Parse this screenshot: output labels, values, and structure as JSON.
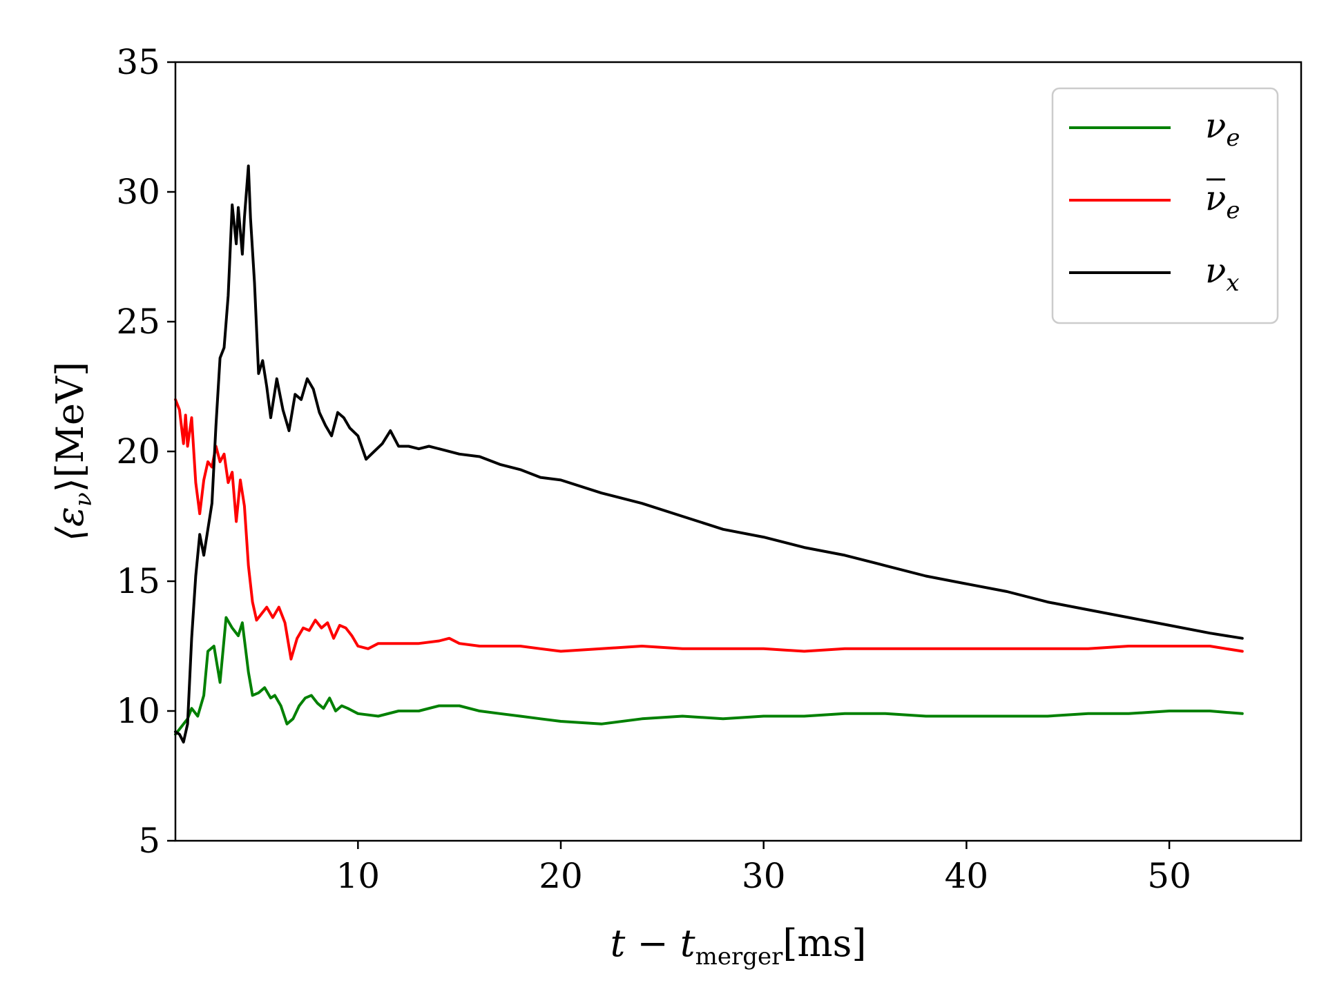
{
  "chart_data": {
    "type": "line",
    "xlabel": "t − t_merger [ms]",
    "xlabel_parts": {
      "main": "t − t",
      "sub": "merger",
      "unit": "[ms]"
    },
    "ylabel": "⟨ε_ν⟩ [MeV]",
    "ylabel_parts": {
      "main": "⟨ε",
      "sub": "ν",
      "tail": "⟩",
      "unit": "[MeV]"
    },
    "xlim": [
      1,
      56.5
    ],
    "ylim": [
      5,
      35
    ],
    "xticks": [
      10,
      20,
      30,
      40,
      50
    ],
    "yticks": [
      5,
      10,
      15,
      20,
      25,
      30,
      35
    ],
    "grid": false,
    "legend_position": "top-right",
    "series": [
      {
        "name": "ν_e",
        "label_parts": {
          "base": "ν",
          "sub": "e",
          "bar": false
        },
        "color": "#008000",
        "x": [
          1.0,
          1.3,
          1.6,
          1.8,
          2.1,
          2.4,
          2.6,
          2.9,
          3.2,
          3.5,
          3.8,
          4.1,
          4.3,
          4.6,
          4.8,
          5.1,
          5.4,
          5.7,
          5.9,
          6.2,
          6.5,
          6.8,
          7.1,
          7.4,
          7.7,
          8.0,
          8.3,
          8.6,
          8.9,
          9.2,
          9.5,
          10.0,
          11.0,
          12.0,
          13.0,
          14.0,
          15.0,
          16.0,
          17.0,
          18.0,
          19.0,
          20.0,
          22.0,
          24.0,
          26.0,
          28.0,
          30.0,
          32.0,
          34.0,
          36.0,
          38.0,
          40.0,
          42.0,
          44.0,
          46.0,
          48.0,
          50.0,
          52.0,
          53.6
        ],
        "values": [
          9.1,
          9.4,
          9.7,
          10.1,
          9.8,
          10.6,
          12.3,
          12.5,
          11.1,
          13.6,
          13.2,
          12.9,
          13.4,
          11.5,
          10.6,
          10.7,
          10.9,
          10.5,
          10.6,
          10.2,
          9.5,
          9.7,
          10.2,
          10.5,
          10.6,
          10.3,
          10.1,
          10.5,
          10.0,
          10.2,
          10.1,
          9.9,
          9.8,
          10.0,
          10.0,
          10.2,
          10.2,
          10.0,
          9.9,
          9.8,
          9.7,
          9.6,
          9.5,
          9.7,
          9.8,
          9.7,
          9.8,
          9.8,
          9.9,
          9.9,
          9.8,
          9.8,
          9.8,
          9.8,
          9.9,
          9.9,
          10.0,
          10.0,
          9.9
        ]
      },
      {
        "name": "ν̄_e",
        "label_parts": {
          "base": "ν",
          "sub": "e",
          "bar": true
        },
        "color": "#ff0000",
        "x": [
          1.0,
          1.2,
          1.4,
          1.5,
          1.6,
          1.8,
          2.0,
          2.2,
          2.4,
          2.6,
          2.8,
          3.0,
          3.2,
          3.4,
          3.6,
          3.8,
          4.0,
          4.2,
          4.4,
          4.6,
          4.8,
          5.0,
          5.2,
          5.5,
          5.8,
          6.1,
          6.4,
          6.7,
          7.0,
          7.3,
          7.6,
          7.9,
          8.2,
          8.5,
          8.8,
          9.1,
          9.4,
          9.7,
          10.0,
          10.5,
          11.0,
          12.0,
          13.0,
          14.0,
          14.5,
          15.0,
          16.0,
          17.0,
          18.0,
          19.0,
          20.0,
          22.0,
          24.0,
          26.0,
          28.0,
          30.0,
          32.0,
          34.0,
          36.0,
          38.0,
          40.0,
          42.0,
          44.0,
          46.0,
          48.0,
          50.0,
          52.0,
          53.6
        ],
        "values": [
          22.0,
          21.6,
          20.3,
          21.4,
          20.2,
          21.3,
          18.8,
          17.6,
          18.9,
          19.6,
          19.4,
          20.2,
          19.6,
          19.9,
          18.8,
          19.2,
          17.3,
          18.9,
          17.9,
          15.6,
          14.2,
          13.5,
          13.7,
          14.0,
          13.6,
          14.0,
          13.4,
          12.0,
          12.8,
          13.2,
          13.1,
          13.5,
          13.2,
          13.4,
          12.8,
          13.3,
          13.2,
          12.9,
          12.5,
          12.4,
          12.6,
          12.6,
          12.6,
          12.7,
          12.8,
          12.6,
          12.5,
          12.5,
          12.5,
          12.4,
          12.3,
          12.4,
          12.5,
          12.4,
          12.4,
          12.4,
          12.3,
          12.4,
          12.4,
          12.4,
          12.4,
          12.4,
          12.4,
          12.4,
          12.5,
          12.5,
          12.5,
          12.3
        ]
      },
      {
        "name": "ν_x",
        "label_parts": {
          "base": "ν",
          "sub": "x",
          "bar": false
        },
        "color": "#000000",
        "x": [
          1.0,
          1.2,
          1.4,
          1.6,
          1.8,
          2.0,
          2.2,
          2.4,
          2.6,
          2.8,
          3.0,
          3.2,
          3.4,
          3.6,
          3.8,
          4.0,
          4.1,
          4.3,
          4.4,
          4.6,
          4.7,
          4.9,
          5.1,
          5.3,
          5.5,
          5.7,
          6.0,
          6.3,
          6.6,
          6.9,
          7.2,
          7.5,
          7.8,
          8.1,
          8.4,
          8.7,
          9.0,
          9.3,
          9.6,
          10.0,
          10.4,
          10.8,
          11.2,
          11.6,
          12.0,
          12.5,
          13.0,
          13.5,
          14.0,
          15.0,
          16.0,
          17.0,
          18.0,
          19.0,
          20.0,
          22.0,
          24.0,
          26.0,
          28.0,
          30.0,
          32.0,
          34.0,
          36.0,
          38.0,
          40.0,
          42.0,
          44.0,
          46.0,
          48.0,
          50.0,
          52.0,
          53.6
        ],
        "values": [
          9.2,
          9.1,
          8.8,
          9.5,
          12.8,
          15.2,
          16.8,
          16.0,
          17.0,
          18.0,
          21.0,
          23.6,
          24.0,
          26.0,
          29.5,
          28.0,
          29.4,
          27.6,
          29.0,
          31.0,
          29.0,
          26.5,
          23.0,
          23.5,
          22.5,
          21.3,
          22.8,
          21.6,
          20.8,
          22.2,
          22.0,
          22.8,
          22.4,
          21.5,
          21.0,
          20.6,
          21.5,
          21.3,
          20.9,
          20.6,
          19.7,
          20.0,
          20.3,
          20.8,
          20.2,
          20.2,
          20.1,
          20.2,
          20.1,
          19.9,
          19.8,
          19.5,
          19.3,
          19.0,
          18.9,
          18.4,
          18.0,
          17.5,
          17.0,
          16.7,
          16.3,
          16.0,
          15.6,
          15.2,
          14.9,
          14.6,
          14.2,
          13.9,
          13.6,
          13.3,
          13.0,
          12.8
        ]
      }
    ]
  }
}
